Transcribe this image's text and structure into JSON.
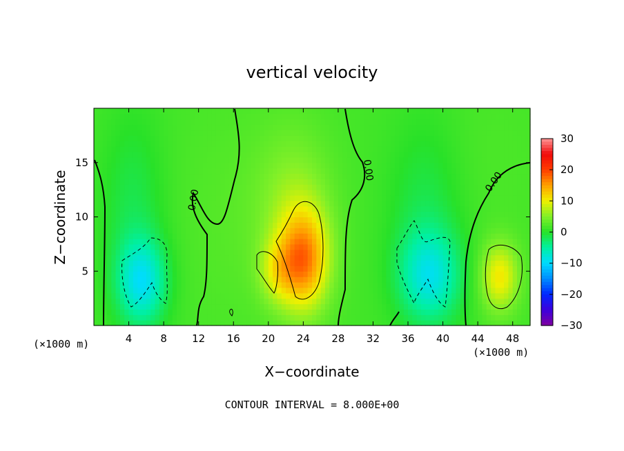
{
  "chart_data": {
    "type": "heatmap",
    "title": "vertical velocity",
    "xlabel": "X−coordinate",
    "ylabel": "Z−coordinate",
    "x_unit_left": "(×1000 m)",
    "x_unit_right": "(×1000 m)",
    "xlim": [
      0,
      50
    ],
    "ylim": [
      0,
      20
    ],
    "x_ticks": [
      4,
      8,
      12,
      16,
      20,
      24,
      28,
      32,
      36,
      40,
      44,
      48
    ],
    "y_ticks": [
      5,
      10,
      15
    ],
    "colorbar": {
      "min": -30,
      "max": 30,
      "ticks": [
        30,
        20,
        10,
        0,
        -10,
        -20,
        -30
      ],
      "tick_labels": [
        "30",
        "20",
        "10",
        "0",
        "−10",
        "−20",
        "−30"
      ]
    },
    "contour_interval_text": "CONTOUR INTERVAL = 8.000E+00",
    "contour_labels": [
      "0.00",
      "0.00",
      "0.00"
    ],
    "blobs": [
      {
        "x": 24.0,
        "z": 6.0,
        "sx": 2.0,
        "sz": 3.2,
        "amp": 14
      },
      {
        "x": 23.0,
        "z": 11.0,
        "sx": 3.0,
        "sz": 5.0,
        "amp": 4
      },
      {
        "x": 21.0,
        "z": 5.0,
        "sx": 1.5,
        "sz": 2.0,
        "amp": 5
      },
      {
        "x": 46.5,
        "z": 4.5,
        "sx": 1.5,
        "sz": 2.2,
        "amp": 9
      },
      {
        "x": 5.5,
        "z": 4.0,
        "sx": 2.0,
        "sz": 2.8,
        "amp": -10
      },
      {
        "x": 4.5,
        "z": 11.0,
        "sx": 2.5,
        "sz": 6.0,
        "amp": -3
      },
      {
        "x": 38.5,
        "z": 4.5,
        "sx": 2.5,
        "sz": 3.0,
        "amp": -9
      },
      {
        "x": 38.0,
        "z": 11.0,
        "sx": 3.0,
        "sz": 6.0,
        "amp": -3
      },
      {
        "x": 16.0,
        "z": 10.0,
        "sx": 5.0,
        "sz": 8.0,
        "amp": 1
      },
      {
        "x": 44.0,
        "z": 15.0,
        "sx": 6.0,
        "sz": 6.0,
        "amp": 0.5
      }
    ]
  }
}
